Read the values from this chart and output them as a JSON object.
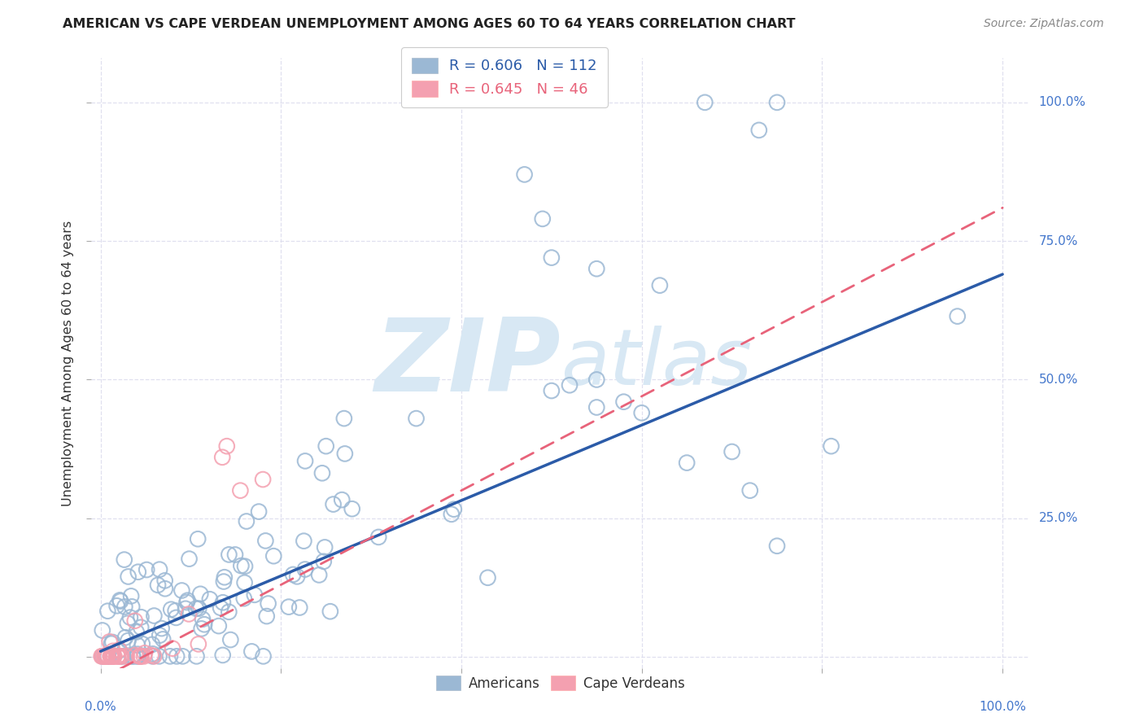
{
  "title": "AMERICAN VS CAPE VERDEAN UNEMPLOYMENT AMONG AGES 60 TO 64 YEARS CORRELATION CHART",
  "source": "Source: ZipAtlas.com",
  "ylabel": "Unemployment Among Ages 60 to 64 years",
  "american_R": 0.606,
  "american_N": 112,
  "capeverdean_R": 0.645,
  "capeverdean_N": 46,
  "american_color": "#9BB8D4",
  "capeverdean_color": "#F4A0B0",
  "american_line_color": "#2B5BA8",
  "capeverdean_line_color": "#E8637A",
  "watermark_color": "#D8E8F4",
  "background_color": "#FFFFFF",
  "right_label_color": "#4477CC",
  "grid_color": "#DDDDEE",
  "am_line_intercept": 0.01,
  "am_line_slope": 0.68,
  "cv_line_intercept": -0.04,
  "cv_line_slope": 0.85
}
